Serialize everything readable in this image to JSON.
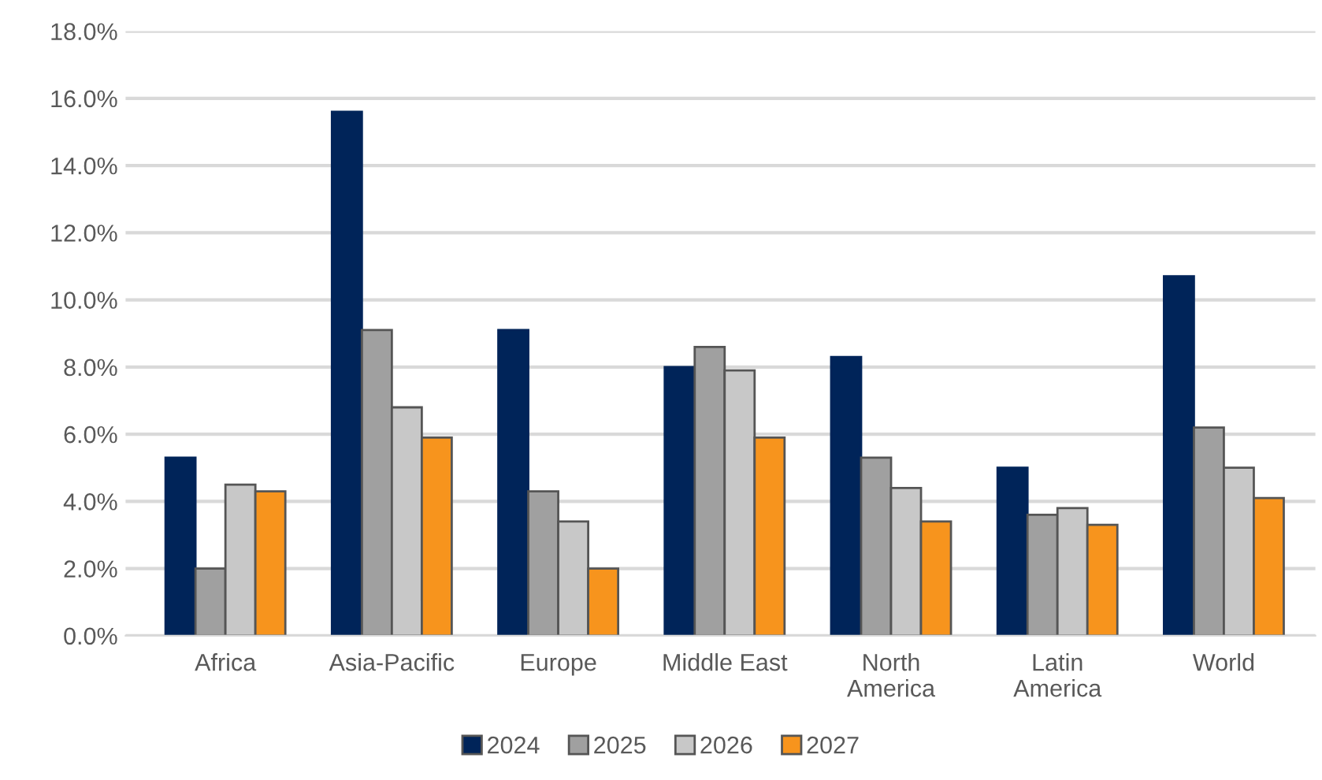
{
  "chart_data": {
    "type": "bar",
    "categories": [
      "Africa",
      "Asia-Pacific",
      "Europe",
      "Middle East",
      "North\nAmerica",
      "Latin\nAmerica",
      "World"
    ],
    "series": [
      {
        "name": "2024",
        "color": "#002459",
        "values": [
          5.3,
          15.6,
          9.1,
          8.0,
          8.3,
          5.0,
          10.7
        ]
      },
      {
        "name": "2025",
        "color": "#a0a0a0",
        "values": [
          2.0,
          9.1,
          4.3,
          8.6,
          5.3,
          3.6,
          6.2
        ]
      },
      {
        "name": "2026",
        "color": "#c8c8c8",
        "values": [
          4.5,
          6.8,
          3.4,
          7.9,
          4.4,
          3.8,
          5.0
        ]
      },
      {
        "name": "2027",
        "color": "#f7941d",
        "values": [
          4.3,
          5.9,
          2.0,
          5.9,
          3.4,
          3.3,
          4.1
        ]
      }
    ],
    "ylim": [
      0,
      18
    ],
    "yticks": [
      {
        "value": 0,
        "label": "0.0%"
      },
      {
        "value": 2,
        "label": "2.0%"
      },
      {
        "value": 4,
        "label": "4.0%"
      },
      {
        "value": 6,
        "label": "6.0%"
      },
      {
        "value": 8,
        "label": "8.0%"
      },
      {
        "value": 10,
        "label": "10.0%"
      },
      {
        "value": 12,
        "label": "12.0%"
      },
      {
        "value": 14,
        "label": "14.0%"
      },
      {
        "value": 16,
        "label": "16.0%"
      },
      {
        "value": 18,
        "label": "18.0%"
      }
    ],
    "grid": "y",
    "legend": "bottom"
  }
}
